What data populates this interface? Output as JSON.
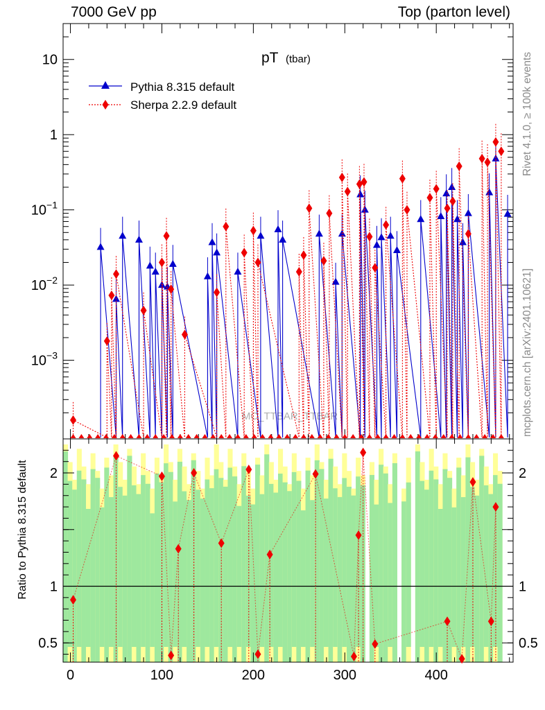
{
  "header": {
    "left": "7000 GeV pp",
    "right": "Top (parton level)"
  },
  "side_labels": {
    "top": "Rivet 4.1.0, ≥ 100k events",
    "bottom": "mcplots.cern.ch [arXiv:2401.10621]"
  },
  "watermark": "MC_TTBAR_TTBAR",
  "colors": {
    "pythia": "#0000cc",
    "sherpa": "#ee0000",
    "band_inner": "#9ee89e",
    "band_outer": "#ffff99"
  },
  "chart_data": [
    {
      "type": "line",
      "title": "pT",
      "title_sub": "(tbar)",
      "xlabel": "",
      "ylabel": "",
      "y_scale": "log",
      "xlim": [
        -8,
        484
      ],
      "ylim": [
        9e-05,
        30
      ],
      "y_ticks": [
        {
          "value": 10,
          "label": "10"
        },
        {
          "value": 1,
          "label": "1"
        },
        {
          "value": 0.1,
          "label": "10",
          "exp": "−1"
        },
        {
          "value": 0.01,
          "label": "10",
          "exp": "−2"
        },
        {
          "value": 0.001,
          "label": "10",
          "exp": "−3"
        }
      ],
      "legend": {
        "position": "top-left",
        "entries": [
          "Pythia 8.315 default",
          "Sherpa 2.2.9 default"
        ]
      },
      "series": [
        {
          "name": "Pythia 8.315 default",
          "marker": "triangle",
          "points": [
            [
              33,
              0.032
            ],
            [
              50,
              0.0065
            ],
            [
              57,
              0.045
            ],
            [
              75,
              0.04
            ],
            [
              87,
              0.018
            ],
            [
              93,
              0.015
            ],
            [
              100,
              0.01
            ],
            [
              106,
              0.0095
            ],
            [
              112,
              0.019
            ],
            [
              150,
              0.013
            ],
            [
              155,
              0.037
            ],
            [
              160,
              0.027
            ],
            [
              183,
              0.015
            ],
            [
              208,
              0.045
            ],
            [
              227,
              0.055
            ],
            [
              232,
              0.04
            ],
            [
              272,
              0.048
            ],
            [
              290,
              0.011
            ],
            [
              297,
              0.048
            ],
            [
              317,
              0.16
            ],
            [
              322,
              0.1
            ],
            [
              335,
              0.034
            ],
            [
              340,
              0.043
            ],
            [
              350,
              0.045
            ],
            [
              357,
              0.029
            ],
            [
              383,
              0.075
            ],
            [
              405,
              0.082
            ],
            [
              411,
              0.165
            ],
            [
              417,
              0.2
            ],
            [
              423,
              0.075
            ],
            [
              429,
              0.037
            ],
            [
              435,
              0.09
            ],
            [
              458,
              0.17
            ],
            [
              465,
              0.48
            ],
            [
              478,
              0.088
            ]
          ]
        },
        {
          "name": "Sherpa 2.2.9 default",
          "marker": "diamond",
          "points": [
            [
              3,
              0.00016
            ],
            [
              40,
              0.0018
            ],
            [
              45,
              0.0073
            ],
            [
              50,
              0.014
            ],
            [
              80,
              0.0046
            ],
            [
              100,
              0.02
            ],
            [
              105,
              0.045
            ],
            [
              110,
              0.0088
            ],
            [
              125,
              0.0022
            ],
            [
              160,
              0.008
            ],
            [
              170,
              0.06
            ],
            [
              190,
              0.027
            ],
            [
              200,
              0.053
            ],
            [
              205,
              0.02
            ],
            [
              250,
              0.015
            ],
            [
              255,
              0.025
            ],
            [
              261,
              0.105
            ],
            [
              277,
              0.021
            ],
            [
              283,
              0.09
            ],
            [
              297,
              0.27
            ],
            [
              303,
              0.175
            ],
            [
              316,
              0.22
            ],
            [
              321,
              0.235
            ],
            [
              327,
              0.044
            ],
            [
              333,
              0.017
            ],
            [
              345,
              0.063
            ],
            [
              363,
              0.26
            ],
            [
              368,
              0.1
            ],
            [
              393,
              0.145
            ],
            [
              400,
              0.19
            ],
            [
              412,
              0.105
            ],
            [
              418,
              0.13
            ],
            [
              425,
              0.38
            ],
            [
              435,
              0.048
            ],
            [
              450,
              0.48
            ],
            [
              456,
              0.43
            ],
            [
              465,
              0.8
            ],
            [
              471,
              0.6
            ]
          ]
        }
      ]
    },
    {
      "type": "line",
      "title": "",
      "xlabel": "",
      "ylabel": "Ratio to Pythia 8.315 default",
      "xlim": [
        -8,
        484
      ],
      "ylim": [
        0.33,
        2.3
      ],
      "x_ticks": [
        0,
        100,
        200,
        300,
        400
      ],
      "y_ticks": [
        0.5,
        1,
        1.5,
        2
      ],
      "y_tick_labels": [
        "0.5",
        "1",
        "",
        "2"
      ],
      "reference_line": 1,
      "series": [
        {
          "name": "Sherpa 2.2.9 default",
          "marker": "diamond",
          "points": [
            [
              3,
              0.88
            ],
            [
              50,
              2.15
            ],
            [
              100,
              1.97
            ],
            [
              110,
              0.39
            ],
            [
              118,
              1.33
            ],
            [
              135,
              2.0
            ],
            [
              165,
              1.38
            ],
            [
              195,
              2.03
            ],
            [
              205,
              0.4
            ],
            [
              218,
              1.28
            ],
            [
              268,
              1.99
            ],
            [
              310,
              0.38
            ],
            [
              315,
              1.45
            ],
            [
              320,
              2.18
            ],
            [
              333,
              0.49
            ],
            [
              412,
              0.69
            ],
            [
              428,
              0.36
            ],
            [
              440,
              1.92
            ],
            [
              460,
              0.69
            ],
            [
              465,
              1.7
            ]
          ]
        }
      ]
    }
  ]
}
